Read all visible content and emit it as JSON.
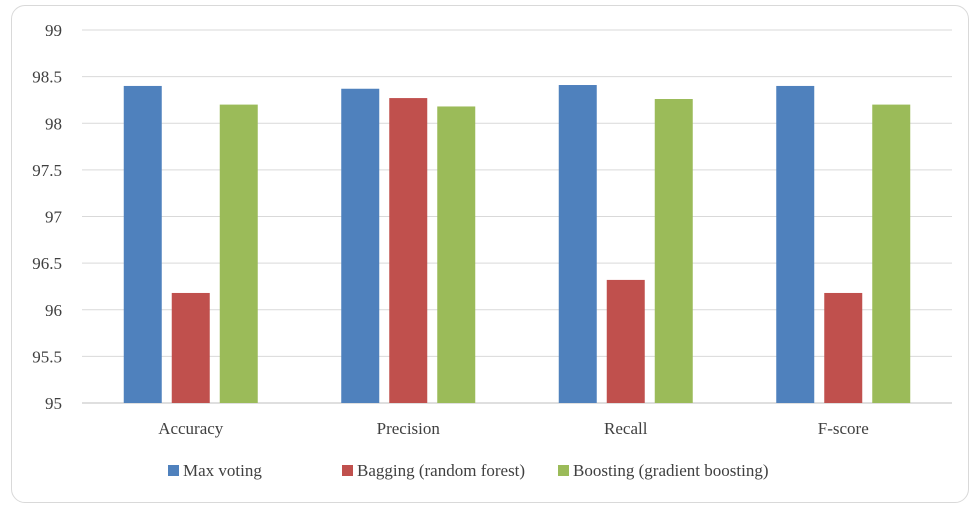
{
  "chart_data": {
    "type": "bar",
    "title": "",
    "xlabel": "",
    "ylabel": "",
    "ylim": [
      95,
      99
    ],
    "yticks": [
      "95",
      "95.5",
      "96",
      "96.5",
      "97",
      "97.5",
      "98",
      "98.5",
      "99"
    ],
    "ytick_values": [
      95,
      95.5,
      96,
      96.5,
      97,
      97.5,
      98,
      98.5,
      99
    ],
    "grid": true,
    "legend_position": "bottom",
    "categories": [
      "Accuracy",
      "Precision",
      "Recall",
      "F-score"
    ],
    "series": [
      {
        "name": "Max voting",
        "color": "#4f81bd",
        "values": [
          98.4,
          98.37,
          98.41,
          98.4
        ]
      },
      {
        "name": "Bagging (random forest)",
        "color": "#c0504d",
        "values": [
          96.18,
          98.27,
          96.32,
          96.18
        ]
      },
      {
        "name": "Boosting (gradient boosting)",
        "color": "#9bbb59",
        "values": [
          98.2,
          98.18,
          98.26,
          98.2
        ]
      }
    ]
  }
}
